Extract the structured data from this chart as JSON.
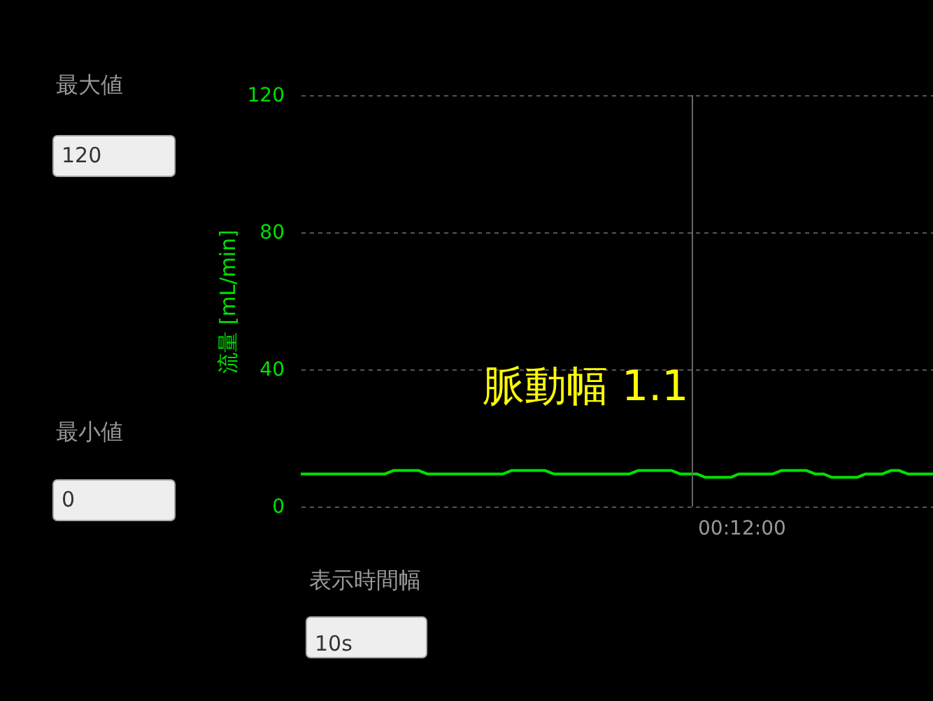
{
  "chart_data": {
    "type": "line",
    "ylabel": "流量 [mL/min]",
    "categories": [
      null,
      null,
      null,
      null,
      null,
      null,
      null,
      null,
      null,
      null,
      null,
      null,
      null,
      null,
      null,
      null,
      null,
      null,
      null,
      null,
      null,
      null,
      null,
      null,
      null,
      null,
      null,
      null,
      null,
      null,
      null,
      null,
      null,
      null,
      null,
      null,
      null,
      null,
      null,
      null,
      null,
      null,
      null,
      null,
      null,
      null,
      null,
      null,
      null,
      null,
      null,
      null,
      null,
      null,
      null,
      null,
      null,
      null,
      null,
      null,
      null,
      null,
      null,
      null,
      null,
      null,
      null,
      null,
      null,
      null,
      null,
      null,
      null,
      null,
      null,
      null
    ],
    "series": [
      {
        "color": "#00e000",
        "values": [
          9.5,
          9.5,
          9.5,
          9.5,
          9.5,
          9.5,
          9.5,
          9.5,
          9.5,
          9.5,
          9.5,
          10.5,
          10.5,
          10.5,
          10.5,
          9.5,
          9.5,
          9.5,
          9.5,
          9.5,
          9.5,
          9.5,
          9.5,
          9.5,
          9.5,
          10.5,
          10.5,
          10.5,
          10.5,
          10.5,
          9.5,
          9.5,
          9.5,
          9.5,
          9.5,
          9.5,
          9.5,
          9.5,
          9.5,
          9.5,
          10.5,
          10.5,
          10.5,
          10.5,
          10.5,
          9.5,
          9.5,
          9.5,
          8.5,
          8.5,
          8.5,
          8.5,
          9.5,
          9.5,
          9.5,
          9.5,
          9.5,
          10.5,
          10.5,
          10.5,
          10.5,
          9.5,
          9.5,
          8.5,
          8.5,
          8.5,
          8.5,
          9.5,
          9.5,
          9.5,
          10.5,
          10.5,
          9.5,
          9.5,
          9.5,
          9.5
        ]
      }
    ],
    "ylim": [
      0,
      120
    ],
    "yticks": [
      0,
      40,
      80,
      120
    ],
    "grid": "y",
    "marker": "none",
    "line_style": "solid",
    "annotations": [
      "脈動幅 1.1",
      "最大値",
      "120",
      "最小値",
      "0",
      "表示時間幅",
      "10s",
      "00:12:00"
    ]
  }
}
